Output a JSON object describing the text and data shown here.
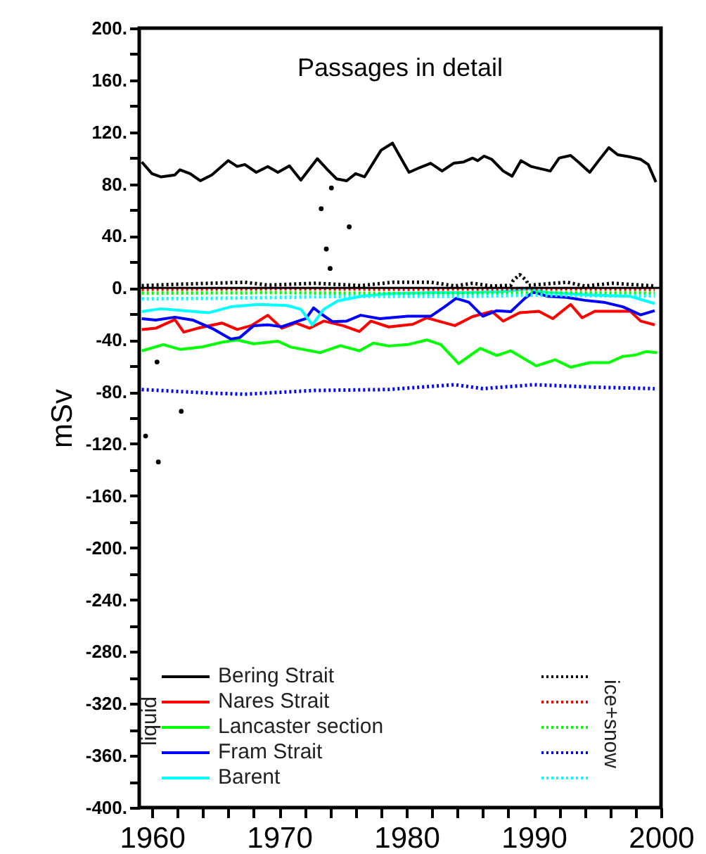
{
  "chart_data": {
    "type": "line",
    "title": "Passages in detail",
    "ylabel": "mSv",
    "annotations": [
      "liquid",
      "ice+snow"
    ],
    "legend": "bottom",
    "grid": false,
    "xlim": [
      1959,
      2000
    ],
    "xticks": [
      1960,
      {
        "value": 1962,
        "label": null
      },
      {
        "value": 1964,
        "label": null
      },
      {
        "value": 1966,
        "label": null
      },
      {
        "value": 1968,
        "label": null
      },
      1970,
      {
        "value": 1972,
        "label": null
      },
      {
        "value": 1974,
        "label": null
      },
      {
        "value": 1976,
        "label": null
      },
      {
        "value": 1978,
        "label": null
      },
      1980,
      {
        "value": 1982,
        "label": null
      },
      {
        "value": 1984,
        "label": null
      },
      {
        "value": 1986,
        "label": null
      },
      {
        "value": 1988,
        "label": null
      },
      1990,
      {
        "value": 1992,
        "label": null
      },
      {
        "value": 1994,
        "label": null
      },
      {
        "value": 1996,
        "label": null
      },
      {
        "value": 1998,
        "label": null
      },
      2000
    ],
    "ylim": [
      -400,
      200
    ],
    "yticks": [
      {
        "value": -400,
        "label": "-400."
      },
      {
        "value": -380,
        "label": null
      },
      {
        "value": -360,
        "label": "-360."
      },
      {
        "value": -340,
        "label": null
      },
      {
        "value": -320,
        "label": "-320."
      },
      {
        "value": -300,
        "label": null
      },
      {
        "value": -280,
        "label": "-280."
      },
      {
        "value": -260,
        "label": null
      },
      {
        "value": -240,
        "label": "-240."
      },
      {
        "value": -220,
        "label": null
      },
      {
        "value": -200,
        "label": "-200."
      },
      {
        "value": -180,
        "label": null
      },
      {
        "value": -160,
        "label": "-160."
      },
      {
        "value": -140,
        "label": null
      },
      {
        "value": -120,
        "label": "-120."
      },
      {
        "value": -100,
        "label": null
      },
      {
        "value": -80,
        "label": "-80."
      },
      {
        "value": -60,
        "label": null
      },
      {
        "value": -40,
        "label": "-40."
      },
      {
        "value": -20,
        "label": null
      },
      {
        "value": 0,
        "label": "0."
      },
      {
        "value": 20,
        "label": null
      },
      {
        "value": 40,
        "label": "40."
      },
      {
        "value": 60,
        "label": null
      },
      {
        "value": 80,
        "label": "80."
      },
      {
        "value": 100,
        "label": null
      },
      {
        "value": 120,
        "label": "120."
      },
      {
        "value": 140,
        "label": null
      },
      {
        "value": 160,
        "label": "160."
      },
      {
        "value": 180,
        "label": null
      },
      {
        "value": 200,
        "label": "200."
      }
    ],
    "ref_lines": [
      {
        "axis": "y",
        "value": 0,
        "color": "#000000"
      }
    ],
    "series": [
      {
        "name": "Bering Strait",
        "color": "#000000",
        "line_style": "solid",
        "x": [
          1959.2,
          1960,
          1960.7,
          1961.8,
          1962.2,
          1963,
          1963.8,
          1964.7,
          1966,
          1966.7,
          1967.3,
          1968.2,
          1969.1,
          1969.9,
          1970.8,
          1971.7,
          1973,
          1973.8,
          1974.5,
          1975.3,
          1976,
          1976.7,
          1978,
          1978.9,
          1979.5,
          1980.2,
          1981,
          1981.9,
          1982.8,
          1983.7,
          1984.5,
          1985.2,
          1985.6,
          1986.1,
          1986.7,
          1987.6,
          1988.3,
          1989,
          1989.8,
          1991.3,
          1992,
          1992.9,
          1993.5,
          1994.4,
          1995.1,
          1995.9,
          1996.6,
          1997.5,
          1998.4,
          1999,
          1999.6
        ],
        "values": [
          97,
          88,
          85.5,
          87,
          91,
          88,
          82.5,
          87,
          98,
          93.5,
          95,
          89,
          93.5,
          89,
          94,
          83,
          99.5,
          91,
          84,
          82.5,
          88,
          85.5,
          106,
          111.5,
          101,
          89,
          92.5,
          96,
          90,
          96,
          97,
          100,
          98,
          101.5,
          99,
          90,
          86,
          98,
          93.5,
          90,
          100,
          102,
          97,
          89,
          98,
          108,
          102.5,
          101,
          99,
          95,
          81.5
        ]
      },
      {
        "name": "Nares Strait",
        "color": "#ff0000",
        "line_style": "solid",
        "x": [
          1959.2,
          1960.3,
          1961.8,
          1962.5,
          1963.6,
          1965.5,
          1966.7,
          1967.8,
          1969.1,
          1970.2,
          1971.3,
          1972.4,
          1973.5,
          1975,
          1976.3,
          1977.2,
          1978.6,
          1980.5,
          1981.6,
          1983.8,
          1985.2,
          1986.7,
          1987.6,
          1988.9,
          1990.4,
          1991.5,
          1992.9,
          1993.8,
          1994.8,
          1996.2,
          1997.6,
          1998.4,
          1999.5
        ],
        "values": [
          -32,
          -31,
          -24.4,
          -34,
          -31,
          -27,
          -32,
          -29,
          -21,
          -31,
          -27,
          -31,
          -25.5,
          -29,
          -33.5,
          -25.5,
          -30,
          -28,
          -23,
          -29,
          -22,
          -18,
          -25.5,
          -19,
          -18,
          -23.6,
          -12.7,
          -23,
          -18,
          -18,
          -18,
          -25.5,
          -28.4
        ]
      },
      {
        "name": "Lancaster section",
        "color": "#00ff00",
        "line_style": "solid",
        "x": [
          1959.2,
          1960.9,
          1962.2,
          1963.9,
          1965.5,
          1966.7,
          1968,
          1969.9,
          1970.9,
          1973.2,
          1974.8,
          1976.3,
          1977.4,
          1978.6,
          1980.1,
          1981.6,
          1982.7,
          1984.1,
          1985.8,
          1987.1,
          1988.2,
          1990.2,
          1991.7,
          1992.9,
          1994.4,
          1995.9,
          1997,
          1998,
          1998.8,
          1999.7
        ],
        "values": [
          -48.4,
          -43.6,
          -47.3,
          -45.5,
          -41.8,
          -40,
          -43,
          -41,
          -45.5,
          -49.8,
          -44.4,
          -48.4,
          -42.5,
          -44.7,
          -43.6,
          -40,
          -43.6,
          -58.2,
          -46.5,
          -52,
          -48.4,
          -60,
          -55.3,
          -61,
          -57.5,
          -57.5,
          -52.7,
          -51.6,
          -49,
          -49.8
        ]
      },
      {
        "name": "Fram Strait",
        "color": "#0000ff",
        "line_style": "solid",
        "x": [
          1959.2,
          1960.3,
          1961.8,
          1963.2,
          1964.7,
          1966.2,
          1966.9,
          1968,
          1969.1,
          1970.2,
          1971.5,
          1972.1,
          1972.7,
          1973.3,
          1974.2,
          1975.3,
          1976.4,
          1977.9,
          1980.1,
          1981.9,
          1983,
          1983.9,
          1984.9,
          1986,
          1987.1,
          1988.2,
          1989.3,
          1990,
          1991.1,
          1992.6,
          1994,
          1995.5,
          1997,
          1998.4,
          1999.5
        ],
        "values": [
          -23.6,
          -24.7,
          -22.5,
          -24.7,
          -31,
          -39.3,
          -38.2,
          -29,
          -28.4,
          -29.8,
          -25.5,
          -23.6,
          -15.3,
          -20,
          -26,
          -25.5,
          -21,
          -23.6,
          -21.8,
          -21.8,
          -14.5,
          -8,
          -11,
          -21.8,
          -17.5,
          -18.2,
          -8,
          -3,
          -6.5,
          -7.3,
          -9.5,
          -11,
          -14.5,
          -20.7,
          -17.5
        ]
      },
      {
        "name": "Barent",
        "color": "#00ffff",
        "line_style": "solid",
        "x": [
          1959.2,
          1960.7,
          1962.5,
          1964.5,
          1966.2,
          1968.4,
          1970.6,
          1971.7,
          1972.6,
          1973.5,
          1974.6,
          1976.4,
          1978.6,
          1981.9,
          1984.5,
          1987.4,
          1989.6,
          1991.1,
          1994.8,
          1997.6,
          1999.5
        ],
        "values": [
          -18.2,
          -16,
          -17.5,
          -19,
          -14.5,
          -12.7,
          -13.5,
          -16.4,
          -28.4,
          -16.4,
          -10,
          -6.5,
          -4.4,
          -3.6,
          -3.6,
          -2.9,
          -0.7,
          -3.6,
          -5.5,
          -6.5,
          -12
        ]
      },
      {
        "color": "#000000",
        "line_style": "dotted",
        "x": [
          1959.2,
          1962.2,
          1967.3,
          1969.1,
          1972.9,
          1976.4,
          1978.9,
          1981.9,
          1983.8,
          1985.2,
          1986.7,
          1988.2,
          1988.4,
          1988.9,
          1989.4,
          1989.6,
          1992.6,
          1994,
          1996.2,
          1999.5
        ],
        "values": [
          1.8,
          2.9,
          4.4,
          2.2,
          3.6,
          1.8,
          4.4,
          4.4,
          1.5,
          3.6,
          1.5,
          2,
          6,
          10.2,
          6,
          2,
          4.4,
          1.5,
          3.6,
          1.5
        ]
      },
      {
        "color": "#ff0000",
        "line_style": "dotted",
        "x": [
          1959.2,
          1970,
          1980,
          1990,
          1999.5
        ],
        "values": [
          -1,
          -0.5,
          -1,
          -0.5,
          -1
        ]
      },
      {
        "color": "#00ff00",
        "line_style": "dotted",
        "x": [
          1959.2,
          1970,
          1980,
          1990,
          1999.5
        ],
        "values": [
          -4,
          -3.6,
          -4.4,
          -3.6,
          -4
        ]
      },
      {
        "color": "#0000ff",
        "line_style": "dotted",
        "x": [
          1959.2,
          1964.7,
          1967.3,
          1972.8,
          1978.6,
          1983.8,
          1986,
          1990,
          1994.8,
          1999.5
        ],
        "values": [
          -78.2,
          -81,
          -81.8,
          -78.9,
          -78.2,
          -74.5,
          -77.5,
          -74.5,
          -76.4,
          -77.5
        ]
      },
      {
        "color": "#00ffff",
        "line_style": "dotted",
        "x": [
          1959.2,
          1965,
          1970,
          1975,
          1980,
          1985,
          1990,
          1995,
          1999.5
        ],
        "values": [
          -8.4,
          -8,
          -7.3,
          -6.5,
          -6.5,
          -6.5,
          -5.5,
          -6,
          -6
        ]
      },
      {
        "type": "scatter",
        "color": "#000000",
        "x": [
          1959.5,
          1960.5,
          1960.4,
          1962.3,
          1973.3,
          1973.7,
          1974,
          1974.1,
          1975.5
        ],
        "values": [
          -114,
          -134,
          -57,
          -95,
          61,
          30,
          15,
          77,
          47
        ]
      }
    ]
  }
}
